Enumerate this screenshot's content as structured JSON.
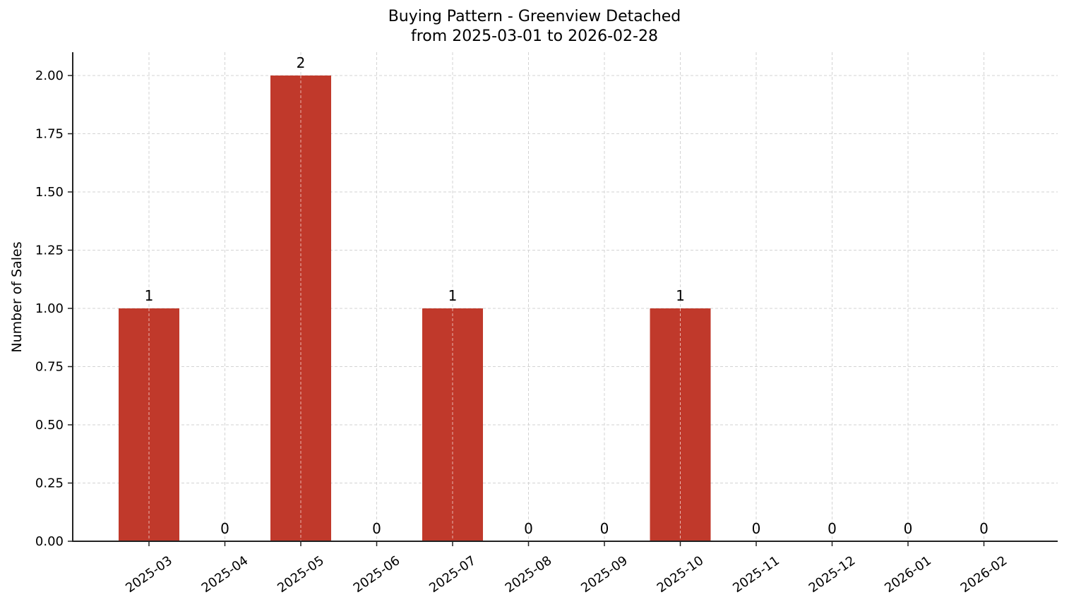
{
  "chart_data": {
    "type": "bar",
    "title": "Buying Pattern - Greenview Detached",
    "subtitle": "from 2025-03-01 to 2026-02-28",
    "xlabel": "",
    "ylabel": "Number of Sales",
    "categories": [
      "2025-03",
      "2025-04",
      "2025-05",
      "2025-06",
      "2025-07",
      "2025-08",
      "2025-09",
      "2025-10",
      "2025-11",
      "2025-12",
      "2026-01",
      "2026-02"
    ],
    "values": [
      1,
      0,
      2,
      0,
      1,
      0,
      0,
      1,
      0,
      0,
      0,
      0
    ],
    "data_labels": [
      "1",
      "0",
      "2",
      "0",
      "1",
      "0",
      "0",
      "1",
      "0",
      "0",
      "0",
      "0"
    ],
    "ylim": [
      0,
      2.1
    ],
    "yticks": [
      "0.00",
      "0.25",
      "0.50",
      "0.75",
      "1.00",
      "1.25",
      "1.50",
      "1.75",
      "2.00"
    ],
    "grid": true,
    "bar_color": "#C0392B",
    "legend": null
  }
}
